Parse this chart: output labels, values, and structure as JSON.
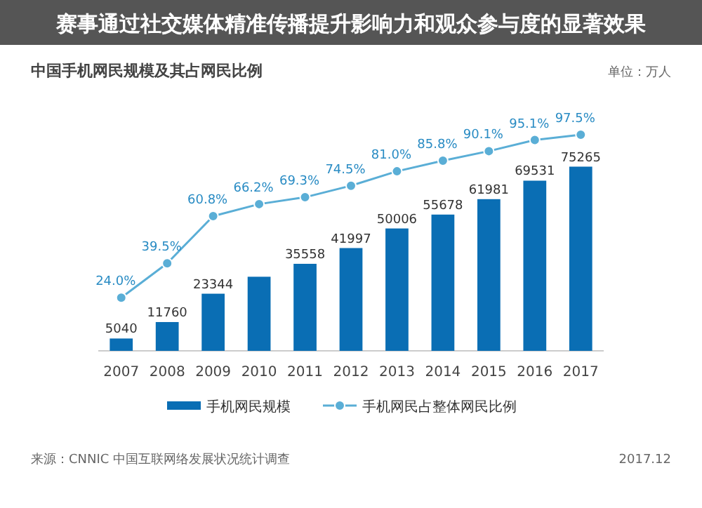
{
  "chart_data": {
    "type": "bar",
    "title": "赛事通过社交媒体精准传播提升影响力和观众参与度的显著效果",
    "subtitle": "中国手机网民规模及其占网民比例",
    "annotations": [
      "单位：万人",
      "来源：CNNIC 中国互联网络发展状况统计调查",
      "2017.12"
    ],
    "categories": [
      "2007",
      "2008",
      "2009",
      "2010",
      "2011",
      "2012",
      "2013",
      "2014",
      "2015",
      "2016",
      "2017"
    ],
    "series": [
      {
        "name": "手机网民规模",
        "color": "#0a6eb4",
        "values": [
          5040,
          11760,
          23344,
          30274,
          35558,
          41997,
          50006,
          55678,
          61981,
          69531,
          75265
        ],
        "value_labels": [
          "5040",
          "11760",
          "23344",
          null,
          "35558",
          "41997",
          "50006",
          "55678",
          "61981",
          "69531",
          "75265"
        ]
      },
      {
        "name": "手机网民占整体网民比例",
        "type": "line",
        "axis": "y2",
        "color": "#5aaed6",
        "marker": "circle",
        "values": [
          24.0,
          39.5,
          60.8,
          66.2,
          69.3,
          74.5,
          81.0,
          85.8,
          90.1,
          95.1,
          97.5
        ],
        "value_labels": [
          "24.0%",
          "39.5%",
          "60.8%",
          "66.2%",
          "69.3%",
          "74.5%",
          "81.0%",
          "85.8%",
          "90.1%",
          "95.1%",
          "97.5%"
        ]
      }
    ],
    "tick_labels": "x",
    "legend": "bottom"
  }
}
